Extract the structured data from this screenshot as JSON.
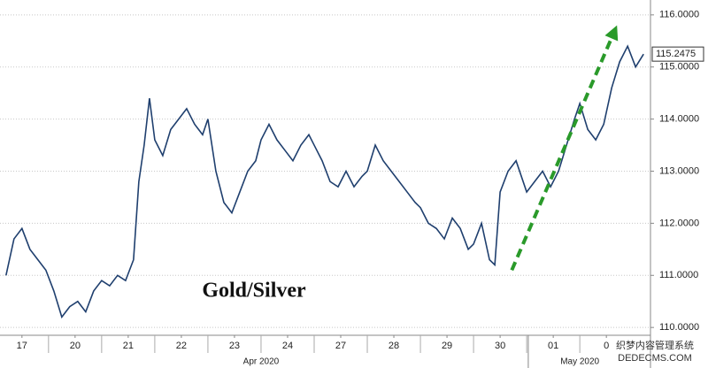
{
  "chart_data": {
    "type": "line",
    "title": "Gold/Silver",
    "x": [
      0.2,
      0.35,
      0.5,
      0.65,
      0.8,
      0.95,
      1.1,
      1.25,
      1.4,
      1.55,
      1.7,
      1.85,
      2.0,
      2.15,
      2.3,
      2.45,
      2.6,
      2.7,
      2.8,
      2.9,
      3.0,
      3.15,
      3.3,
      3.45,
      3.6,
      3.75,
      3.9,
      4.0,
      4.15,
      4.3,
      4.45,
      4.6,
      4.75,
      4.9,
      5.0,
      5.15,
      5.3,
      5.45,
      5.6,
      5.75,
      5.9,
      6.0,
      6.15,
      6.3,
      6.45,
      6.6,
      6.75,
      6.9,
      7.0,
      7.15,
      7.3,
      7.45,
      7.6,
      7.75,
      7.9,
      8.0,
      8.15,
      8.3,
      8.45,
      8.6,
      8.75,
      8.9,
      9.0,
      9.15,
      9.3,
      9.4,
      9.5,
      9.65,
      9.8,
      10.0,
      10.15,
      10.3,
      10.45,
      10.6,
      10.75,
      10.9,
      11.0,
      11.15,
      11.3,
      11.45,
      11.6,
      11.75,
      11.9,
      12.05,
      12.2
    ],
    "series": [
      {
        "name": "Gold/Silver",
        "color": "#1f3f6e",
        "values": [
          111.0,
          111.7,
          111.9,
          111.5,
          111.3,
          111.1,
          110.7,
          110.2,
          110.4,
          110.5,
          110.3,
          110.7,
          110.9,
          110.8,
          111.0,
          110.9,
          111.3,
          112.8,
          113.5,
          114.4,
          113.6,
          113.3,
          113.8,
          114.0,
          114.2,
          113.9,
          113.7,
          114.0,
          113.0,
          112.4,
          112.2,
          112.6,
          113.0,
          113.2,
          113.6,
          113.9,
          113.6,
          113.4,
          113.2,
          113.5,
          113.7,
          113.5,
          113.2,
          112.8,
          112.7,
          113.0,
          112.7,
          112.9,
          113.0,
          113.5,
          113.2,
          113.0,
          112.8,
          112.6,
          112.4,
          112.3,
          112.0,
          111.9,
          111.7,
          112.1,
          111.9,
          111.5,
          111.6,
          112.0,
          111.3,
          111.2,
          112.6,
          113.0,
          113.2,
          112.6,
          112.8,
          113.0,
          112.7,
          113.0,
          113.5,
          114.0,
          114.3,
          113.8,
          113.6,
          113.9,
          114.6,
          115.1,
          115.4,
          115.0,
          115.2475
        ]
      }
    ],
    "last_value_label": "115.2475",
    "xlim": [
      0.17,
      12.33
    ],
    "ylim": [
      109.85,
      116.15
    ],
    "yticks": [
      {
        "value": 110,
        "label": "110.0000"
      },
      {
        "value": 111,
        "label": "111.0000"
      },
      {
        "value": 112,
        "label": "112.0000"
      },
      {
        "value": 113,
        "label": "113.0000"
      },
      {
        "value": 114,
        "label": "114.0000"
      },
      {
        "value": 115,
        "label": "115.0000"
      },
      {
        "value": 116,
        "label": "116.0000"
      }
    ],
    "xticks": [
      {
        "value": 0.5,
        "label": "17"
      },
      {
        "value": 1.5,
        "label": "20"
      },
      {
        "value": 2.5,
        "label": "21"
      },
      {
        "value": 3.5,
        "label": "22"
      },
      {
        "value": 4.5,
        "label": "23"
      },
      {
        "value": 5.5,
        "label": "24"
      },
      {
        "value": 6.5,
        "label": "27"
      },
      {
        "value": 7.5,
        "label": "28"
      },
      {
        "value": 8.5,
        "label": "29"
      },
      {
        "value": 9.5,
        "label": "30"
      },
      {
        "value": 10.5,
        "label": "01"
      },
      {
        "value": 11.5,
        "label": "0"
      }
    ],
    "month_labels": [
      {
        "value": 5,
        "label": "Apr 2020"
      },
      {
        "value": 11,
        "label": "May 2020"
      }
    ],
    "month_separator": 10.03,
    "trend_arrow": {
      "x": [
        9.72,
        11.7
      ],
      "y": [
        111.1,
        115.8
      ],
      "color": "#2a9a2a"
    },
    "grid": true,
    "watermark": [
      "织梦内容管理系统",
      "DEDECMS.COM"
    ]
  }
}
